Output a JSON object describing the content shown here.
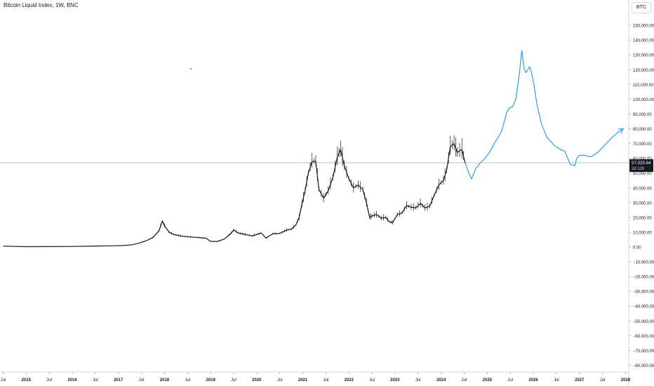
{
  "chart_title": "Bitcoin Liquid Index, 1W, BNC",
  "symbol_button": "BTC",
  "colors": {
    "price": "#131722",
    "projection": "#2f9ee8",
    "last_price_bg": "#131722",
    "axis": "#787b86"
  },
  "chart_data": {
    "type": "line",
    "title": "Bitcoin Liquid Index, 1W, BNC",
    "xlabel": "",
    "ylabel": "",
    "ylim": [
      -85000,
      155000
    ],
    "xlim": [
      2014.5,
      2028.15
    ],
    "grid": false,
    "y_ticks": [
      "150,000.00",
      "140,000.00",
      "130,000.00",
      "120,000.00",
      "110,000.00",
      "100,000.00",
      "90,000.00",
      "80,000.00",
      "70,000.00",
      "60,000.00",
      "50,000.00",
      "40,000.00",
      "30,000.00",
      "20,000.00",
      "10,000.00",
      "0.00",
      "−10,000.00",
      "−20,000.00",
      "−30,000.00",
      "−40,000.00",
      "−50,000.00",
      "−60,000.00",
      "−70,000.00",
      "−80,000.00"
    ],
    "y_tick_values": [
      150000,
      140000,
      130000,
      120000,
      110000,
      100000,
      90000,
      80000,
      70000,
      60000,
      50000,
      40000,
      30000,
      20000,
      10000,
      0,
      -10000,
      -20000,
      -30000,
      -40000,
      -50000,
      -60000,
      -70000,
      -80000
    ],
    "x_ticks": [
      {
        "label": "Jul",
        "x": 2014.5
      },
      {
        "label": "2015",
        "x": 2015.0
      },
      {
        "label": "Jul",
        "x": 2015.5
      },
      {
        "label": "2016",
        "x": 2016.0
      },
      {
        "label": "Jul",
        "x": 2016.5
      },
      {
        "label": "2017",
        "x": 2017.0
      },
      {
        "label": "Jul",
        "x": 2017.5
      },
      {
        "label": "2018",
        "x": 2018.0
      },
      {
        "label": "Jul",
        "x": 2018.5
      },
      {
        "label": "2019",
        "x": 2019.0
      },
      {
        "label": "Jul",
        "x": 2019.5
      },
      {
        "label": "2020",
        "x": 2020.0
      },
      {
        "label": "Jul",
        "x": 2020.5
      },
      {
        "label": "2021",
        "x": 2021.0
      },
      {
        "label": "Jul",
        "x": 2021.5
      },
      {
        "label": "2022",
        "x": 2022.0
      },
      {
        "label": "Jul",
        "x": 2022.5
      },
      {
        "label": "2023",
        "x": 2023.0
      },
      {
        "label": "Jul",
        "x": 2023.5
      },
      {
        "label": "2024",
        "x": 2024.0
      },
      {
        "label": "Jul",
        "x": 2024.5
      },
      {
        "label": "2025",
        "x": 2025.0
      },
      {
        "label": "Jul",
        "x": 2025.5
      },
      {
        "label": "2026",
        "x": 2026.0
      },
      {
        "label": "Jul",
        "x": 2026.5
      },
      {
        "label": "2027",
        "x": 2027.0
      },
      {
        "label": "Jul",
        "x": 2027.5
      },
      {
        "label": "2028",
        "x": 2028.0
      }
    ],
    "last_price": {
      "value": 57025.84,
      "label": "57,025.84",
      "countdown": "2d 12h"
    },
    "series": [
      {
        "x": [
          2014.5,
          2015.0,
          2015.5,
          2016.0,
          2016.5,
          2016.9,
          2017.1,
          2017.3,
          2017.45,
          2017.6,
          2017.75,
          2017.88,
          2017.95,
          2018.0,
          2018.1,
          2018.2,
          2018.35,
          2018.5,
          2018.7,
          2018.9,
          2019.0,
          2019.15,
          2019.3,
          2019.45,
          2019.5,
          2019.6,
          2019.75,
          2019.9,
          2020.0,
          2020.1,
          2020.2,
          2020.35,
          2020.5,
          2020.65,
          2020.75,
          2020.85,
          2020.92,
          2020.98,
          2021.05,
          2021.12,
          2021.2,
          2021.28,
          2021.35,
          2021.45,
          2021.55,
          2021.65,
          2021.75,
          2021.82,
          2021.9,
          2022.0,
          2022.1,
          2022.2,
          2022.3,
          2022.38,
          2022.45,
          2022.5,
          2022.6,
          2022.7,
          2022.8,
          2022.88,
          2022.95,
          2023.05,
          2023.15,
          2023.25,
          2023.35,
          2023.45,
          2023.55,
          2023.65,
          2023.75,
          2023.85,
          2023.95,
          2024.05,
          2024.12,
          2024.2,
          2024.28,
          2024.35,
          2024.45,
          2024.52
        ],
        "values": [
          600,
          250,
          300,
          400,
          650,
          850,
          1000,
          1500,
          2700,
          4200,
          6500,
          11000,
          17500,
          14500,
          10000,
          8500,
          7500,
          7000,
          6500,
          6000,
          3800,
          3800,
          5500,
          9500,
          11500,
          9500,
          8500,
          7500,
          8500,
          9500,
          6000,
          9000,
          9200,
          11500,
          12000,
          15000,
          20000,
          29000,
          38000,
          50000,
          58000,
          58000,
          39000,
          33000,
          38000,
          47000,
          61000,
          66000,
          55000,
          46000,
          40000,
          42000,
          39000,
          30000,
          20000,
          21000,
          22000,
          19500,
          20000,
          17000,
          16600,
          22000,
          23000,
          28000,
          27000,
          26500,
          29500,
          26500,
          27500,
          35000,
          42000,
          45000,
          52000,
          68000,
          70000,
          64000,
          66000,
          57026
        ]
      },
      {
        "x": [
          2024.52,
          2024.6,
          2024.66,
          2024.75,
          2024.85,
          2024.95,
          2025.05,
          2025.15,
          2025.25,
          2025.32,
          2025.38,
          2025.42,
          2025.48,
          2025.55,
          2025.62,
          2025.7,
          2025.75,
          2025.8,
          2025.84,
          2025.88,
          2025.92,
          2025.96,
          2026.0,
          2026.08,
          2026.18,
          2026.3,
          2026.45,
          2026.58,
          2026.68,
          2026.8,
          2026.9,
          2026.94,
          2027.0,
          2027.12,
          2027.25,
          2027.4,
          2027.55,
          2027.7,
          2027.85,
          2027.95
        ],
        "values": [
          57026,
          50000,
          46000,
          53000,
          57000,
          60000,
          64000,
          70000,
          75000,
          79000,
          86000,
          91000,
          94000,
          95000,
          100000,
          118000,
          133000,
          121000,
          118000,
          120000,
          122000,
          118000,
          112000,
          96000,
          83000,
          74000,
          69000,
          66000,
          65000,
          56000,
          55000,
          60000,
          62000,
          62000,
          61000,
          64000,
          69000,
          74000,
          78000,
          80000
        ]
      }
    ]
  }
}
